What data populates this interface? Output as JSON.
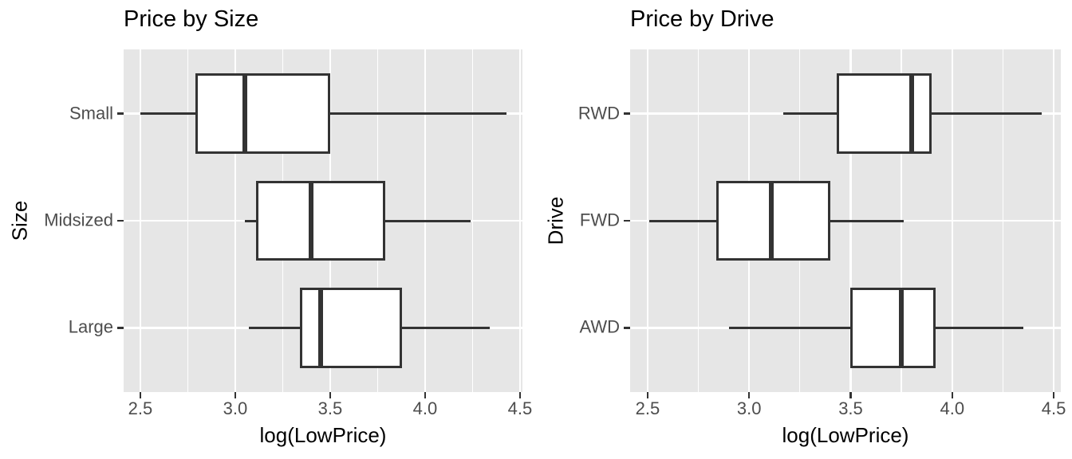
{
  "figure": {
    "background": "#ffffff",
    "panel_background": "#E6E6E6",
    "gridline_color": "#ffffff",
    "box_stroke_color": "#333333",
    "axis_text_color": "#4D4D4D",
    "title_color": "#000000"
  },
  "chart_data": [
    {
      "type": "boxplot",
      "orientation": "horizontal",
      "title": "Price by Size",
      "xlabel": "log(LowPrice)",
      "ylabel": "Size",
      "x_tick_labels": [
        "2.5",
        "3.0",
        "3.5",
        "4.0",
        "4.5"
      ],
      "x_ticks": [
        2.5,
        3.0,
        3.5,
        4.0,
        4.5
      ],
      "x_minor_ticks": [
        2.75,
        3.25,
        3.75,
        4.25
      ],
      "xlim": [
        2.412,
        4.513
      ],
      "grid": true,
      "categories": [
        "Small",
        "Midsized",
        "Large"
      ],
      "series": [
        {
          "category": "Small",
          "min": 2.5,
          "q1": 2.79,
          "median": 3.05,
          "q3": 3.5,
          "max": 4.43
        },
        {
          "category": "Midsized",
          "min": 3.05,
          "q1": 3.11,
          "median": 3.4,
          "q3": 3.79,
          "max": 4.24
        },
        {
          "category": "Large",
          "min": 3.07,
          "q1": 3.34,
          "median": 3.45,
          "q3": 3.88,
          "max": 4.34
        }
      ]
    },
    {
      "type": "boxplot",
      "orientation": "horizontal",
      "title": "Price by Drive",
      "xlabel": "log(LowPrice)",
      "ylabel": "Drive",
      "x_tick_labels": [
        "2.5",
        "3.0",
        "3.5",
        "4.0",
        "4.5"
      ],
      "x_ticks": [
        2.5,
        3.0,
        3.5,
        4.0,
        4.5
      ],
      "x_minor_ticks": [
        2.75,
        3.25,
        3.75,
        4.25
      ],
      "xlim": [
        2.414,
        4.535
      ],
      "grid": true,
      "categories": [
        "RWD",
        "FWD",
        "AWD"
      ],
      "series": [
        {
          "category": "RWD",
          "min": 3.17,
          "q1": 3.43,
          "median": 3.8,
          "q3": 3.9,
          "max": 4.44
        },
        {
          "category": "FWD",
          "min": 2.51,
          "q1": 2.84,
          "median": 3.11,
          "q3": 3.4,
          "max": 3.76
        },
        {
          "category": "AWD",
          "min": 2.9,
          "q1": 3.5,
          "median": 3.75,
          "q3": 3.92,
          "max": 4.35
        }
      ]
    }
  ]
}
